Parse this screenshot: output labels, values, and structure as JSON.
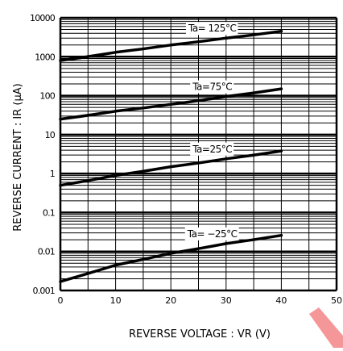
{
  "chart_data": {
    "type": "line",
    "xlabel": "REVERSE VOLTAGE : VR (V)",
    "ylabel": "REVERSE CURRENT : IR (μA)",
    "x_ticks": [
      "0",
      "10",
      "20",
      "30",
      "40",
      "50"
    ],
    "y_ticks": [
      "10000",
      "1000",
      "100",
      "10",
      "1",
      "0.1",
      "0.01",
      "0.001"
    ],
    "xlim": [
      0,
      50
    ],
    "ylim": [
      0.001,
      10000
    ],
    "y_scale": "log",
    "grid": true,
    "series": [
      {
        "name": "Ta= 125°C",
        "x": [
          0,
          10,
          20,
          30,
          40
        ],
        "y": [
          800,
          1300,
          2000,
          3000,
          4500
        ]
      },
      {
        "name": "Ta=75°C",
        "x": [
          0,
          10,
          20,
          30,
          40
        ],
        "y": [
          25,
          40,
          60,
          95,
          150
        ]
      },
      {
        "name": "Ta=25°C",
        "x": [
          0,
          10,
          20,
          30,
          40
        ],
        "y": [
          0.5,
          0.9,
          1.5,
          2.4,
          3.8
        ]
      },
      {
        "name": "Ta= −25°C",
        "x": [
          0,
          10,
          20,
          30,
          40
        ],
        "y": [
          0.0017,
          0.0045,
          0.009,
          0.016,
          0.026
        ]
      }
    ]
  }
}
